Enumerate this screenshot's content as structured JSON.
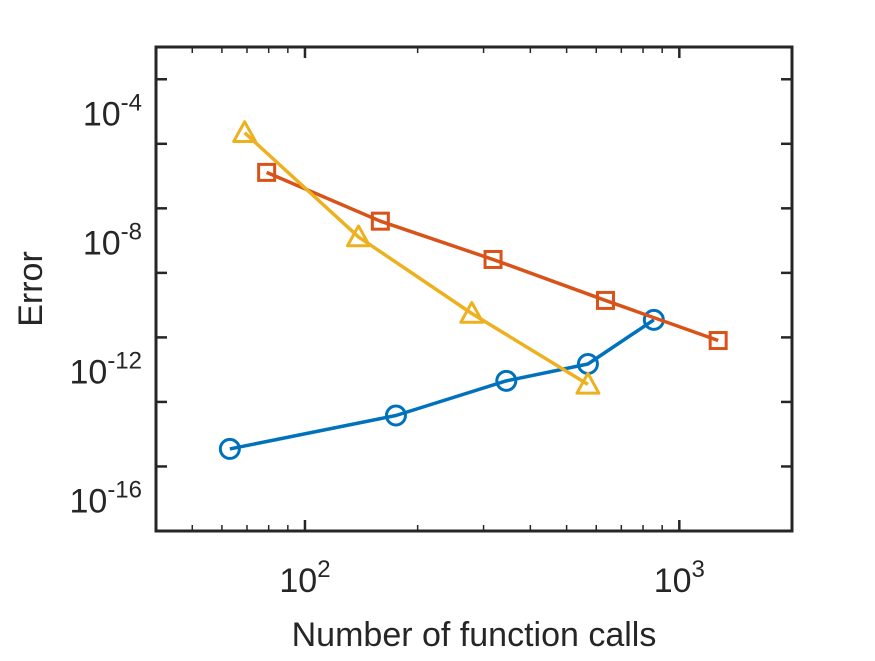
{
  "chart_data": {
    "type": "line",
    "title": "",
    "xlabel": "Number of function calls",
    "ylabel": "Error",
    "xscale": "log",
    "yscale": "log",
    "xlim": [
      40,
      2000
    ],
    "ylim": [
      1e-17,
      0.01
    ],
    "grid": false,
    "legend": "none",
    "x_ticks": [
      {
        "value": 100,
        "base": "10",
        "exp": "2"
      },
      {
        "value": 1000,
        "base": "10",
        "exp": "3"
      }
    ],
    "y_ticks": [
      {
        "value": 1e-16,
        "base": "10",
        "exp": "-16"
      },
      {
        "value": 1e-12,
        "base": "10",
        "exp": "-12"
      },
      {
        "value": 1e-08,
        "base": "10",
        "exp": "-8"
      },
      {
        "value": 0.0001,
        "base": "10",
        "exp": "-4"
      }
    ],
    "series": [
      {
        "color": "#0072BD",
        "marker": "circle",
        "x": [
          63,
          175,
          345,
          570,
          855
        ],
        "y": [
          3.5e-15,
          3.8e-14,
          4.5e-13,
          1.5e-12,
          3.5e-11
        ]
      },
      {
        "color": "#D95319",
        "marker": "square",
        "x": [
          79,
          159,
          318,
          635,
          1270
        ],
        "y": [
          1.3e-06,
          4e-08,
          2.6e-09,
          1.4e-10,
          8e-12
        ]
      },
      {
        "color": "#EDB120",
        "marker": "triangle",
        "x": [
          69,
          139,
          279,
          570
        ],
        "y": [
          2.2e-05,
          1.3e-08,
          5.5e-11,
          3.5e-13
        ]
      }
    ]
  }
}
